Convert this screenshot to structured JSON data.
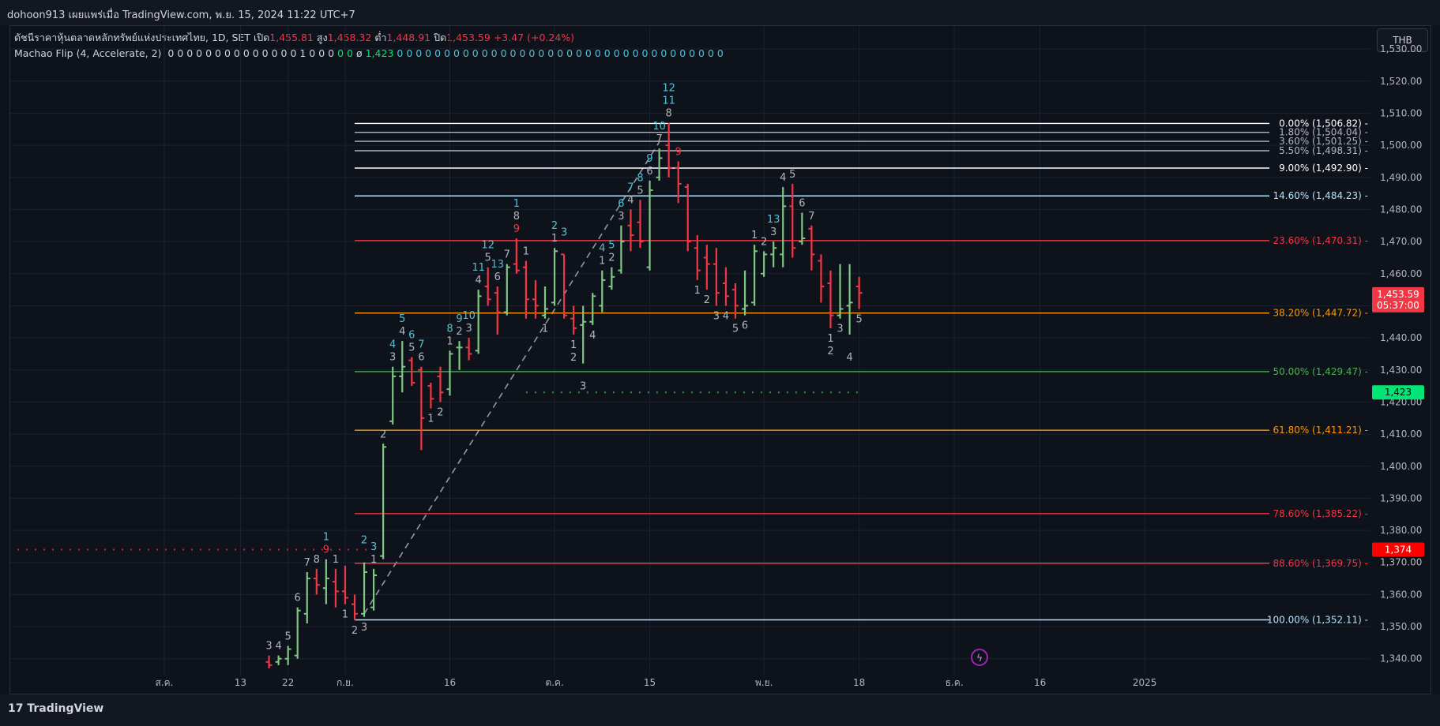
{
  "header": {
    "text": "dohoon913 เผยแพร่เมื่อ TradingView.com, พ.ย. 15, 2024 11:22 UTC+7"
  },
  "legend": {
    "title": "ดัชนีราคาหุ้นตลาดหลักทรัพย์แห่งประเทศไทย, 1D, SET",
    "open_label": "เปิด",
    "open": "1,455.81",
    "high_label": "สูง",
    "high": "1,458.32",
    "low_label": "ต่ำ",
    "low": "1,448.91",
    "close_label": "ปิด",
    "close": "1,453.59",
    "change": "+3.47 (+0.24%)",
    "indicator": "Machao Flip (4, Accelerate, 2)",
    "ind_a": "0 0 0 0 0 0 0 0 0 0 0 0 0 0 1 0 0 0",
    "ind_b": "0 0",
    "ind_c": "ø",
    "ind_val": "1,423",
    "ind_d": "0 0 0 0 0 0 0 0 0 0 0 0 0",
    "ind_e": "0 0 0 0 0 0 0 0 0 0 0 0 0 0 0 0 0 0 0 0 0 0"
  },
  "currency": "THB",
  "footer": {
    "logo": "TradingView"
  },
  "colors": {
    "up": "#81c784",
    "down": "#f23645",
    "bg": "#0e121b"
  },
  "chart_data": {
    "type": "ohlc",
    "ylim": [
      1336,
      1532
    ],
    "y_ticks": [
      "1,340.00",
      "1,350.00",
      "1,360.00",
      "1,370.00",
      "1,380.00",
      "1,390.00",
      "1,400.00",
      "1,410.00",
      "1,420.00",
      "1,430.00",
      "1,440.00",
      "1,450.00",
      "1,460.00",
      "1,470.00",
      "1,480.00",
      "1,490.00",
      "1,500.00",
      "1,510.00",
      "1,520.00",
      "1,530.00"
    ],
    "x_ticks": [
      {
        "i": -20,
        "label": "ส.ค."
      },
      {
        "i": -12,
        "label": "13"
      },
      {
        "i": -7,
        "label": "22"
      },
      {
        "i": -1,
        "label": "ก.ย."
      },
      {
        "i": 10,
        "label": "16"
      },
      {
        "i": 21,
        "label": "ต.ค."
      },
      {
        "i": 31,
        "label": "15"
      },
      {
        "i": 43,
        "label": "พ.ย."
      },
      {
        "i": 53,
        "label": "18"
      },
      {
        "i": 63,
        "label": "ธ.ค."
      },
      {
        "i": 72,
        "label": "16"
      },
      {
        "i": 83,
        "label": "2025"
      }
    ],
    "candles": [
      {
        "i": -9,
        "o": 1339,
        "h": 1341,
        "l": 1337,
        "c": 1338
      },
      {
        "i": -8,
        "o": 1339,
        "h": 1341,
        "l": 1338,
        "c": 1340
      },
      {
        "i": -7,
        "o": 1340,
        "h": 1344,
        "l": 1338,
        "c": 1343
      },
      {
        "i": -6,
        "o": 1341,
        "h": 1356,
        "l": 1340,
        "c": 1355
      },
      {
        "i": -5,
        "o": 1354,
        "h": 1367,
        "l": 1351,
        "c": 1365
      },
      {
        "i": -4,
        "o": 1365,
        "h": 1368,
        "l": 1360,
        "c": 1363
      },
      {
        "i": -3,
        "o": 1362,
        "h": 1371,
        "l": 1357,
        "c": 1365
      },
      {
        "i": -2,
        "o": 1364,
        "h": 1368,
        "l": 1356,
        "c": 1361
      },
      {
        "i": -1,
        "o": 1361,
        "h": 1369,
        "l": 1357,
        "c": 1359
      },
      {
        "i": 0,
        "o": 1357,
        "h": 1360,
        "l": 1352,
        "c": 1354
      },
      {
        "i": 1,
        "o": 1354,
        "h": 1370,
        "l": 1353,
        "c": 1367
      },
      {
        "i": 2,
        "o": 1356,
        "h": 1368,
        "l": 1355,
        "c": 1366
      },
      {
        "i": 3,
        "o": 1372,
        "h": 1407,
        "l": 1371,
        "c": 1406
      },
      {
        "i": 4,
        "o": 1414,
        "h": 1431,
        "l": 1413,
        "c": 1428
      },
      {
        "i": 5,
        "o": 1428,
        "h": 1439,
        "l": 1423,
        "c": 1431
      },
      {
        "i": 6,
        "o": 1433,
        "h": 1434,
        "l": 1425,
        "c": 1426
      },
      {
        "i": 7,
        "o": 1430,
        "h": 1431,
        "l": 1405,
        "c": 1415
      },
      {
        "i": 8,
        "o": 1425,
        "h": 1426,
        "l": 1418,
        "c": 1421
      },
      {
        "i": 9,
        "o": 1428,
        "h": 1431,
        "l": 1420,
        "c": 1423
      },
      {
        "i": 10,
        "o": 1424,
        "h": 1436,
        "l": 1422,
        "c": 1435
      },
      {
        "i": 11,
        "o": 1437,
        "h": 1439,
        "l": 1430,
        "c": 1437
      },
      {
        "i": 12,
        "o": 1437,
        "h": 1440,
        "l": 1433,
        "c": 1435
      },
      {
        "i": 13,
        "o": 1436,
        "h": 1455,
        "l": 1435,
        "c": 1453
      },
      {
        "i": 14,
        "o": 1456,
        "h": 1462,
        "l": 1450,
        "c": 1452
      },
      {
        "i": 15,
        "o": 1454,
        "h": 1456,
        "l": 1441,
        "c": 1448
      },
      {
        "i": 16,
        "o": 1448,
        "h": 1463,
        "l": 1447,
        "c": 1462
      },
      {
        "i": 17,
        "o": 1463,
        "h": 1471,
        "l": 1460,
        "c": 1461
      },
      {
        "i": 18,
        "o": 1462,
        "h": 1464,
        "l": 1446,
        "c": 1452
      },
      {
        "i": 19,
        "o": 1452,
        "h": 1458,
        "l": 1446,
        "c": 1450
      },
      {
        "i": 20,
        "o": 1447,
        "h": 1456,
        "l": 1446,
        "c": 1449
      },
      {
        "i": 21,
        "o": 1451,
        "h": 1468,
        "l": 1450,
        "c": 1467
      },
      {
        "i": 22,
        "o": 1466,
        "h": 1466,
        "l": 1446,
        "c": 1447
      },
      {
        "i": 23,
        "o": 1446,
        "h": 1450,
        "l": 1441,
        "c": 1443
      },
      {
        "i": 24,
        "o": 1444,
        "h": 1450,
        "l": 1432,
        "c": 1445
      },
      {
        "i": 25,
        "o": 1445,
        "h": 1454,
        "l": 1444,
        "c": 1453
      },
      {
        "i": 26,
        "o": 1450,
        "h": 1461,
        "l": 1448,
        "c": 1458
      },
      {
        "i": 27,
        "o": 1456,
        "h": 1462,
        "l": 1455,
        "c": 1459
      },
      {
        "i": 28,
        "o": 1461,
        "h": 1475,
        "l": 1460,
        "c": 1470
      },
      {
        "i": 29,
        "o": 1475,
        "h": 1480,
        "l": 1467,
        "c": 1472
      },
      {
        "i": 30,
        "o": 1476,
        "h": 1483,
        "l": 1468,
        "c": 1470
      },
      {
        "i": 31,
        "o": 1462,
        "h": 1489,
        "l": 1461,
        "c": 1486
      },
      {
        "i": 32,
        "o": 1490,
        "h": 1499,
        "l": 1489,
        "c": 1496
      },
      {
        "i": 33,
        "o": 1500,
        "h": 1507,
        "l": 1490,
        "c": 1493
      },
      {
        "i": 34,
        "o": 1493,
        "h": 1495,
        "l": 1482,
        "c": 1488
      },
      {
        "i": 35,
        "o": 1487,
        "h": 1488,
        "l": 1467,
        "c": 1470
      },
      {
        "i": 36,
        "o": 1468,
        "h": 1472,
        "l": 1458,
        "c": 1461
      },
      {
        "i": 37,
        "o": 1465,
        "h": 1469,
        "l": 1455,
        "c": 1463
      },
      {
        "i": 38,
        "o": 1463,
        "h": 1468,
        "l": 1450,
        "c": 1454
      },
      {
        "i": 39,
        "o": 1457,
        "h": 1462,
        "l": 1450,
        "c": 1453
      },
      {
        "i": 40,
        "o": 1455,
        "h": 1457,
        "l": 1446,
        "c": 1450
      },
      {
        "i": 41,
        "o": 1449,
        "h": 1461,
        "l": 1447,
        "c": 1450
      },
      {
        "i": 42,
        "o": 1451,
        "h": 1469,
        "l": 1450,
        "c": 1467
      },
      {
        "i": 43,
        "o": 1460,
        "h": 1467,
        "l": 1459,
        "c": 1466
      },
      {
        "i": 44,
        "o": 1466,
        "h": 1470,
        "l": 1462,
        "c": 1468
      },
      {
        "i": 45,
        "o": 1466,
        "h": 1487,
        "l": 1462,
        "c": 1481
      },
      {
        "i": 46,
        "o": 1481,
        "h": 1488,
        "l": 1465,
        "c": 1468
      },
      {
        "i": 47,
        "o": 1470,
        "h": 1479,
        "l": 1469,
        "c": 1471
      },
      {
        "i": 48,
        "o": 1474,
        "h": 1475,
        "l": 1461,
        "c": 1466
      },
      {
        "i": 49,
        "o": 1464,
        "h": 1466,
        "l": 1451,
        "c": 1456
      },
      {
        "i": 50,
        "o": 1457,
        "h": 1461,
        "l": 1443,
        "c": 1447
      },
      {
        "i": 51,
        "o": 1447,
        "h": 1463,
        "l": 1446,
        "c": 1449
      },
      {
        "i": 52,
        "o": 1450,
        "h": 1463,
        "l": 1441,
        "c": 1451
      },
      {
        "i": 53,
        "o": 1456,
        "h": 1459,
        "l": 1449,
        "c": 1454
      }
    ],
    "fib_levels": [
      {
        "value": 1506.82,
        "label": "0.00% (1,506.82)",
        "color": "#ffffff"
      },
      {
        "value": 1504.04,
        "label": "1.80% (1,504.04)",
        "color": "#b2b5be"
      },
      {
        "value": 1501.25,
        "label": "3.60% (1,501.25)",
        "color": "#b2b5be"
      },
      {
        "value": 1498.31,
        "label": "5.50% (1,498.31)",
        "color": "#b2b5be"
      },
      {
        "value": 1492.9,
        "label": "9.00% (1,492.90)",
        "color": "#ffffff"
      },
      {
        "value": 1484.23,
        "label": "14.60% (1,484.23)",
        "color": "#b3e5fc"
      },
      {
        "value": 1470.31,
        "label": "23.60% (1,470.31)",
        "color": "#f23645"
      },
      {
        "value": 1447.72,
        "label": "38.20% (1,447.72)",
        "color": "#ff9800"
      },
      {
        "value": 1429.47,
        "label": "50.00% (1,429.47)",
        "color": "#4caf50"
      },
      {
        "value": 1411.21,
        "label": "61.80% (1,411.21)",
        "color": "#ff9800"
      },
      {
        "value": 1385.22,
        "label": "78.60% (1,385.22)",
        "color": "#f23645"
      },
      {
        "value": 1369.75,
        "label": "88.60% (1,369.75)",
        "color": "#f23645"
      },
      {
        "value": 1352.11,
        "label": "100.00% (1,352.11)",
        "color": "#b3e5fc"
      }
    ],
    "fib_start_i": 0,
    "trend_line": {
      "from_i": 1,
      "from_v": 1354,
      "to_i": 32,
      "to_v": 1501
    },
    "dotted_green": {
      "value": 1423,
      "from_i": 18,
      "to_i": 53
    },
    "dotted_red": {
      "value": 1374,
      "from_i": -29,
      "to_i": 3
    },
    "price_tags": [
      {
        "value": 1453.59,
        "text": "1,453.59",
        "sub": "05:37:00",
        "color": "#f23645"
      },
      {
        "value": 1423,
        "text": "1,423",
        "color": "#00e676"
      },
      {
        "value": 1374,
        "text": "1,374",
        "color": "#ff0000"
      }
    ],
    "counts": [
      {
        "i": -9,
        "t": "3",
        "pos": "above",
        "c": "w"
      },
      {
        "i": -8,
        "t": "4",
        "pos": "above",
        "c": "w"
      },
      {
        "i": -7,
        "t": "5",
        "pos": "above",
        "c": "w"
      },
      {
        "i": -6,
        "t": "6",
        "pos": "above",
        "c": "w"
      },
      {
        "i": -5,
        "t": "7",
        "pos": "above",
        "c": "w"
      },
      {
        "i": -4,
        "t": "8",
        "pos": "above",
        "c": "w"
      },
      {
        "i": -3,
        "t": "9",
        "pos": "above",
        "c": "r"
      },
      {
        "i": -3,
        "t": "1",
        "pos": "above2",
        "c": "t"
      },
      {
        "i": -2,
        "t": "1",
        "pos": "above",
        "c": "w"
      },
      {
        "i": -1,
        "t": "1",
        "pos": "below",
        "c": "w"
      },
      {
        "i": 0,
        "t": "2",
        "pos": "below",
        "c": "w"
      },
      {
        "i": 1,
        "t": "3",
        "pos": "below",
        "c": "w"
      },
      {
        "i": 1,
        "t": "2",
        "pos": "above2",
        "c": "t"
      },
      {
        "i": 2,
        "t": "3",
        "pos": "above2",
        "c": "t"
      },
      {
        "i": 2,
        "t": "1",
        "pos": "above",
        "c": "w"
      },
      {
        "i": 3,
        "t": "2",
        "pos": "above",
        "c": "w"
      },
      {
        "i": 4,
        "t": "4",
        "pos": "above2",
        "c": "t"
      },
      {
        "i": 4,
        "t": "3",
        "pos": "above",
        "c": "w"
      },
      {
        "i": 5,
        "t": "5",
        "pos": "above2",
        "c": "t"
      },
      {
        "i": 5,
        "t": "4",
        "pos": "above",
        "c": "w"
      },
      {
        "i": 6,
        "t": "6",
        "pos": "above2",
        "c": "t"
      },
      {
        "i": 6,
        "t": "5",
        "pos": "above",
        "c": "w"
      },
      {
        "i": 7,
        "t": "7",
        "pos": "above2",
        "c": "t"
      },
      {
        "i": 7,
        "t": "6",
        "pos": "above",
        "c": "w"
      },
      {
        "i": 8,
        "t": "1",
        "pos": "below",
        "c": "w"
      },
      {
        "i": 9,
        "t": "2",
        "pos": "below",
        "c": "w"
      },
      {
        "i": 10,
        "t": "8",
        "pos": "above2",
        "c": "t"
      },
      {
        "i": 10,
        "t": "1",
        "pos": "above",
        "c": "w"
      },
      {
        "i": 11,
        "t": "9",
        "pos": "above2",
        "c": "t"
      },
      {
        "i": 11,
        "t": "2",
        "pos": "above",
        "c": "w"
      },
      {
        "i": 12,
        "t": "10",
        "pos": "above2",
        "c": "t"
      },
      {
        "i": 12,
        "t": "3",
        "pos": "above",
        "c": "w"
      },
      {
        "i": 13,
        "t": "11",
        "pos": "above2",
        "c": "t"
      },
      {
        "i": 13,
        "t": "4",
        "pos": "above",
        "c": "w"
      },
      {
        "i": 14,
        "t": "12",
        "pos": "above2",
        "c": "t"
      },
      {
        "i": 14,
        "t": "5",
        "pos": "above",
        "c": "w"
      },
      {
        "i": 15,
        "t": "13",
        "pos": "above2",
        "c": "t"
      },
      {
        "i": 15,
        "t": "6",
        "pos": "above",
        "c": "w"
      },
      {
        "i": 16,
        "t": "7",
        "pos": "above",
        "c": "w"
      },
      {
        "i": 17,
        "t": "8",
        "pos": "above2",
        "c": "w"
      },
      {
        "i": 17,
        "t": "1",
        "pos": "above3",
        "c": "t"
      },
      {
        "i": 17,
        "t": "9",
        "pos": "above",
        "c": "r"
      },
      {
        "i": 18,
        "t": "1",
        "pos": "above",
        "c": "w"
      },
      {
        "i": 20,
        "t": "1",
        "pos": "below",
        "c": "w"
      },
      {
        "i": 21,
        "t": "2",
        "pos": "above2",
        "c": "t"
      },
      {
        "i": 21,
        "t": "1",
        "pos": "above",
        "c": "w"
      },
      {
        "i": 22,
        "t": "3",
        "pos": "above2",
        "c": "t"
      },
      {
        "i": 23,
        "t": "1",
        "pos": "below",
        "c": "w"
      },
      {
        "i": 23,
        "t": "2",
        "pos": "below2",
        "c": "w"
      },
      {
        "i": 24,
        "t": "3",
        "pos": "below2",
        "c": "w"
      },
      {
        "i": 25,
        "t": "4",
        "pos": "below",
        "c": "w"
      },
      {
        "i": 26,
        "t": "4",
        "pos": "above2",
        "c": "t"
      },
      {
        "i": 26,
        "t": "1",
        "pos": "above",
        "c": "w"
      },
      {
        "i": 27,
        "t": "5",
        "pos": "above2",
        "c": "t"
      },
      {
        "i": 27,
        "t": "2",
        "pos": "above",
        "c": "w"
      },
      {
        "i": 28,
        "t": "6",
        "pos": "above2",
        "c": "t"
      },
      {
        "i": 28,
        "t": "3",
        "pos": "above",
        "c": "w"
      },
      {
        "i": 29,
        "t": "7",
        "pos": "above2",
        "c": "t"
      },
      {
        "i": 29,
        "t": "4",
        "pos": "above",
        "c": "w"
      },
      {
        "i": 30,
        "t": "8",
        "pos": "above2",
        "c": "t"
      },
      {
        "i": 30,
        "t": "5",
        "pos": "above",
        "c": "w"
      },
      {
        "i": 31,
        "t": "9",
        "pos": "above2",
        "c": "t"
      },
      {
        "i": 31,
        "t": "6",
        "pos": "above",
        "c": "w"
      },
      {
        "i": 32,
        "t": "10",
        "pos": "above2",
        "c": "t"
      },
      {
        "i": 32,
        "t": "7",
        "pos": "above",
        "c": "w"
      },
      {
        "i": 33,
        "t": "11",
        "pos": "above2",
        "c": "t"
      },
      {
        "i": 33,
        "t": "8",
        "pos": "above",
        "c": "w"
      },
      {
        "i": 33,
        "t": "12",
        "pos": "above3",
        "c": "t"
      },
      {
        "i": 34,
        "t": "9",
        "pos": "above",
        "c": "r"
      },
      {
        "i": 36,
        "t": "1",
        "pos": "below",
        "c": "w"
      },
      {
        "i": 37,
        "t": "2",
        "pos": "below",
        "c": "w"
      },
      {
        "i": 38,
        "t": "3",
        "pos": "below",
        "c": "w"
      },
      {
        "i": 39,
        "t": "4",
        "pos": "below",
        "c": "w"
      },
      {
        "i": 40,
        "t": "5",
        "pos": "below",
        "c": "w"
      },
      {
        "i": 41,
        "t": "6",
        "pos": "below",
        "c": "w"
      },
      {
        "i": 42,
        "t": "1",
        "pos": "above",
        "c": "w"
      },
      {
        "i": 43,
        "t": "2",
        "pos": "above",
        "c": "w"
      },
      {
        "i": 44,
        "t": "3",
        "pos": "above",
        "c": "w"
      },
      {
        "i": 44,
        "t": "13",
        "pos": "above2",
        "c": "t"
      },
      {
        "i": 45,
        "t": "4",
        "pos": "above",
        "c": "w"
      },
      {
        "i": 46,
        "t": "5",
        "pos": "above",
        "c": "w"
      },
      {
        "i": 47,
        "t": "6",
        "pos": "above",
        "c": "w"
      },
      {
        "i": 48,
        "t": "7",
        "pos": "above",
        "c": "w"
      },
      {
        "i": 50,
        "t": "1",
        "pos": "below",
        "c": "w"
      },
      {
        "i": 50,
        "t": "2",
        "pos": "below2",
        "c": "w"
      },
      {
        "i": 51,
        "t": "3",
        "pos": "below",
        "c": "w"
      },
      {
        "i": 52,
        "t": "4",
        "pos": "below2",
        "c": "w"
      },
      {
        "i": 53,
        "t": "5",
        "pos": "below",
        "c": "w"
      }
    ]
  }
}
